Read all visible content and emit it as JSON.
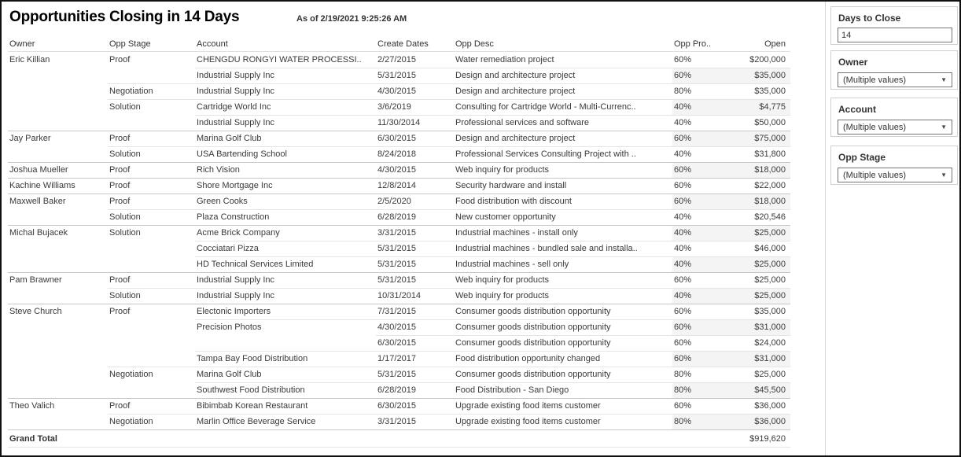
{
  "title": "Opportunities Closing in 14 Days",
  "as_of": "As of 2/19/2021 9:25:26 AM",
  "colors": {
    "text": "#3a3a3a",
    "band": "#f4f4f4",
    "line_light": "#e5e5e5",
    "line_dark": "#c6c6c6",
    "outer_border": "#111111"
  },
  "table": {
    "columns": [
      "Owner",
      "Opp Stage",
      "Account",
      "Create Dates",
      "Opp Desc",
      "Opp Pro..",
      "Open"
    ],
    "rows": [
      {
        "owner": "Eric Killian",
        "stage": "Proof",
        "account": "CHENGDU RONGYI WATER PROCESSI..",
        "date": "2/27/2015",
        "desc": "Water remediation project",
        "pct": "60%",
        "open": "$200,000",
        "sep": "none"
      },
      {
        "owner": "",
        "stage": "",
        "account": "Industrial Supply Inc",
        "date": "5/31/2015",
        "desc": "Design and architecture project",
        "pct": "60%",
        "open": "$35,000",
        "sep": "account"
      },
      {
        "owner": "",
        "stage": "Negotiation",
        "account": "Industrial Supply Inc",
        "date": "4/30/2015",
        "desc": "Design and architecture project",
        "pct": "80%",
        "open": "$35,000",
        "sep": "stage"
      },
      {
        "owner": "",
        "stage": "Solution",
        "account": "Cartridge World Inc",
        "date": "3/6/2019",
        "desc": "Consulting for Cartridge World - Multi-Currenc..",
        "pct": "40%",
        "open": "$4,775",
        "sep": "stage"
      },
      {
        "owner": "",
        "stage": "",
        "account": "Industrial Supply Inc",
        "date": "11/30/2014",
        "desc": "Professional services and software",
        "pct": "40%",
        "open": "$50,000",
        "sep": "account"
      },
      {
        "owner": "Jay Parker",
        "stage": "Proof",
        "account": "Marina Golf Club",
        "date": "6/30/2015",
        "desc": "Design and architecture project",
        "pct": "60%",
        "open": "$75,000",
        "sep": "owner"
      },
      {
        "owner": "",
        "stage": "Solution",
        "account": "USA Bartending School",
        "date": "8/24/2018",
        "desc": "Professional Services Consulting Project with ..",
        "pct": "40%",
        "open": "$31,800",
        "sep": "stage"
      },
      {
        "owner": "Joshua Mueller",
        "stage": "Proof",
        "account": "Rich Vision",
        "date": "4/30/2015",
        "desc": "Web inquiry for products",
        "pct": "60%",
        "open": "$18,000",
        "sep": "owner"
      },
      {
        "owner": "Kachine Williams",
        "stage": "Proof",
        "account": "Shore Mortgage Inc",
        "date": "12/8/2014",
        "desc": "Security hardware and install",
        "pct": "60%",
        "open": "$22,000",
        "sep": "owner"
      },
      {
        "owner": "Maxwell Baker",
        "stage": "Proof",
        "account": "Green Cooks",
        "date": "2/5/2020",
        "desc": "Food distribution with discount",
        "pct": "60%",
        "open": "$18,000",
        "sep": "owner"
      },
      {
        "owner": "",
        "stage": "Solution",
        "account": "Plaza Construction",
        "date": "6/28/2019",
        "desc": "New customer opportunity",
        "pct": "40%",
        "open": "$20,546",
        "sep": "stage"
      },
      {
        "owner": "Michal Bujacek",
        "stage": "Solution",
        "account": "Acme Brick Company",
        "date": "3/31/2015",
        "desc": "Industrial machines - install only",
        "pct": "40%",
        "open": "$25,000",
        "sep": "owner"
      },
      {
        "owner": "",
        "stage": "",
        "account": "Cocciatari Pizza",
        "date": "5/31/2015",
        "desc": "Industrial machines - bundled sale and installa..",
        "pct": "40%",
        "open": "$46,000",
        "sep": "account"
      },
      {
        "owner": "",
        "stage": "",
        "account": "HD Technical Services Limited",
        "date": "5/31/2015",
        "desc": "Industrial machines - sell only",
        "pct": "40%",
        "open": "$25,000",
        "sep": "account"
      },
      {
        "owner": "Pam Brawner",
        "stage": "Proof",
        "account": "Industrial Supply Inc",
        "date": "5/31/2015",
        "desc": "Web inquiry for products",
        "pct": "60%",
        "open": "$25,000",
        "sep": "owner"
      },
      {
        "owner": "",
        "stage": "Solution",
        "account": "Industrial Supply Inc",
        "date": "10/31/2014",
        "desc": "Web inquiry for products",
        "pct": "40%",
        "open": "$25,000",
        "sep": "stage"
      },
      {
        "owner": "Steve Church",
        "stage": "Proof",
        "account": "Electonic Importers",
        "date": "7/31/2015",
        "desc": "Consumer goods distribution opportunity",
        "pct": "60%",
        "open": "$35,000",
        "sep": "owner"
      },
      {
        "owner": "",
        "stage": "",
        "account": "Precision Photos",
        "date": "4/30/2015",
        "desc": "Consumer goods distribution opportunity",
        "pct": "60%",
        "open": "$31,000",
        "sep": "account"
      },
      {
        "owner": "",
        "stage": "",
        "account": "",
        "date": "6/30/2015",
        "desc": "Consumer goods distribution opportunity",
        "pct": "60%",
        "open": "$24,000",
        "sep": "date"
      },
      {
        "owner": "",
        "stage": "",
        "account": "Tampa Bay Food Distribution",
        "date": "1/17/2017",
        "desc": "Food distribution opportunity changed",
        "pct": "60%",
        "open": "$31,000",
        "sep": "account"
      },
      {
        "owner": "",
        "stage": "Negotiation",
        "account": "Marina Golf Club",
        "date": "5/31/2015",
        "desc": "Consumer goods distribution opportunity",
        "pct": "80%",
        "open": "$25,000",
        "sep": "stage"
      },
      {
        "owner": "",
        "stage": "",
        "account": "Southwest Food Distribution",
        "date": "6/28/2019",
        "desc": "Food Distribution - San Diego",
        "pct": "80%",
        "open": "$45,500",
        "sep": "account"
      },
      {
        "owner": "Theo Valich",
        "stage": "Proof",
        "account": "Bibimbab Korean Restaurant",
        "date": "6/30/2015",
        "desc": "Upgrade existing food items customer",
        "pct": "60%",
        "open": "$36,000",
        "sep": "owner"
      },
      {
        "owner": "",
        "stage": "Negotiation",
        "account": "Marlin Office Beverage Service",
        "date": "3/31/2015",
        "desc": "Upgrade existing food items customer",
        "pct": "80%",
        "open": "$36,000",
        "sep": "stage"
      }
    ],
    "grand_total_label": "Grand Total",
    "grand_total_value": "$919,620"
  },
  "filters": {
    "days_to_close": {
      "label": "Days to Close",
      "value": "14"
    },
    "owner": {
      "label": "Owner",
      "value": "(Multiple values)"
    },
    "account": {
      "label": "Account",
      "value": "(Multiple values)"
    },
    "opp_stage": {
      "label": "Opp Stage",
      "value": "(Multiple values)"
    }
  }
}
